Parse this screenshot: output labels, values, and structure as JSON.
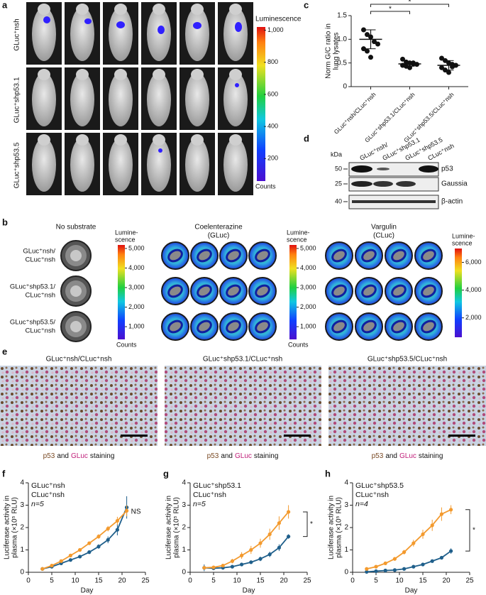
{
  "panel_labels": [
    "a",
    "b",
    "c",
    "d",
    "e",
    "f",
    "g",
    "h"
  ],
  "panel_a": {
    "rows": [
      "GLuc⁺nsh",
      "GLuc⁺shp53.1",
      "GLuc⁺shp53.5"
    ],
    "colorbar": {
      "title": "Luminescence",
      "lim": [
        60,
        1020
      ],
      "ticks": [
        {
          "value": 1000,
          "label": "1,000"
        },
        800,
        600,
        400,
        200
      ],
      "unit": "Counts"
    }
  },
  "panel_b": {
    "rows": [
      [
        "GLuc⁺nsh/",
        "CLuc⁺nsh"
      ],
      [
        "GLuc⁺shp53.1/",
        "CLuc⁺nsh"
      ],
      [
        "GLuc⁺shp53.5/",
        "CLuc⁺nsh"
      ]
    ],
    "conditions": [
      {
        "title": [
          "No substrate"
        ],
        "colorbar": {
          "title": [
            "Lumine-",
            "scence"
          ],
          "lim": [
            350,
            5180
          ],
          "ticks": [
            {
              "value": 5000,
              "label": "5,000"
            },
            {
              "value": 4000,
              "label": "4,000"
            },
            {
              "value": 3000,
              "label": "3,000"
            },
            {
              "value": 2000,
              "label": "2,000"
            },
            {
              "value": 1000,
              "label": "1,000"
            }
          ],
          "unit": "Counts"
        }
      },
      {
        "title": [
          "Coelenterazine",
          "(GLuc)"
        ],
        "colorbar": {
          "title": [
            "Lumine-",
            "scence"
          ],
          "lim": [
            350,
            5180
          ],
          "ticks": [
            {
              "value": 5000,
              "label": "5,000"
            },
            {
              "value": 4000,
              "label": "4,000"
            },
            {
              "value": 3000,
              "label": "3,000"
            },
            {
              "value": 2000,
              "label": "2,000"
            },
            {
              "value": 1000,
              "label": "1,000"
            }
          ],
          "unit": "Counts"
        }
      },
      {
        "title": [
          "Vargulin",
          "(CLuc)"
        ],
        "colorbar": {
          "title": [
            "Lumine-",
            "scence"
          ],
          "lim": [
            600,
            7000
          ],
          "ticks": [
            {
              "value": 6000,
              "label": "6,000"
            },
            {
              "value": 4000,
              "label": "4,000"
            },
            {
              "value": 2000,
              "label": "2,000"
            }
          ]
        }
      }
    ]
  },
  "panel_d": {
    "unit": "kDa",
    "markers": [
      50,
      25,
      40
    ],
    "lanes": [
      "GLuc⁺nsh/",
      "GLuc⁺shp53.1",
      "GLuc⁺shp53.5",
      "CLuc⁺nsh"
    ],
    "bands": [
      "p53",
      "Gaussia",
      "β-actin"
    ]
  },
  "panel_e": {
    "titles": [
      "GLuc⁺nsh/CLuc⁺nsh",
      "GLuc⁺shp53.1/CLuc⁺nsh",
      "GLuc⁺shp53.5/CLuc⁺nsh"
    ],
    "caption": {
      "p53": "p53",
      "and": "and",
      "gluc": "GLuc",
      "staining": "staining"
    }
  },
  "chart_data": [
    {
      "type": "strip",
      "ylabel": [
        "Norm G/C ratio in",
        "lung lysates"
      ],
      "categories": [
        "GLuc⁺nsh/CLuc⁺nsh",
        "GLuc⁺shp53.1/CLuc⁺nsh",
        "GLuc⁺shp53.5/CLuc⁺nsh"
      ],
      "values": [
        [
          1.2,
          1.1,
          1.05,
          0.95,
          0.9,
          0.8,
          0.75,
          0.62
        ],
        [
          0.58,
          0.52,
          0.5,
          0.48,
          0.47,
          0.45,
          0.43,
          0.4,
          0.5
        ],
        [
          0.6,
          0.55,
          0.5,
          0.47,
          0.45,
          0.4,
          0.35,
          0.3,
          0.42
        ]
      ],
      "means": [
        1.0,
        0.48,
        0.45
      ],
      "errors": [
        0.2,
        0.05,
        0.1
      ],
      "color": "#111111",
      "ylim": [
        0,
        1.5
      ],
      "yticks": [
        0,
        0.5,
        {
          "value": 1,
          "label": "1.0"
        },
        1.5
      ],
      "significance": [
        "*",
        "*"
      ]
    },
    {
      "type": "line",
      "xlabel": "Day",
      "ylabel": [
        "Luciferase activity in",
        "plasma (×10⁵ RLU)"
      ],
      "x": [
        3,
        5,
        7,
        9,
        11,
        13,
        15,
        17,
        19,
        21
      ],
      "series": [
        {
          "name": "GLuc⁺nsh",
          "color": "#1f5f8b",
          "values": [
            0.15,
            0.25,
            0.4,
            0.55,
            0.7,
            0.9,
            1.15,
            1.45,
            1.9,
            2.9
          ],
          "errors": [
            0.02,
            0.03,
            0.04,
            0.05,
            0.06,
            0.08,
            0.1,
            0.15,
            0.25,
            0.5
          ]
        },
        {
          "name": "CLuc⁺nsh",
          "color": "#f39a2e",
          "values": [
            0.15,
            0.3,
            0.5,
            0.75,
            1.0,
            1.3,
            1.6,
            1.95,
            2.3,
            2.75
          ],
          "errors": [
            0.02,
            0.03,
            0.04,
            0.05,
            0.06,
            0.08,
            0.1,
            0.12,
            0.18,
            0.25
          ]
        }
      ],
      "xlim": [
        0,
        25
      ],
      "xticks": [
        0,
        5,
        10,
        15,
        20,
        25
      ],
      "ylim": [
        0,
        4
      ],
      "yticks": [
        0,
        1,
        2,
        3,
        4
      ],
      "annotation": "n=5",
      "significance": "NS",
      "bracket": false
    },
    {
      "type": "line",
      "xlabel": "Day",
      "ylabel": [
        "Luciferase activity in",
        "plasma (×10⁵ RLU)"
      ],
      "x": [
        3,
        5,
        7,
        9,
        11,
        13,
        15,
        17,
        19,
        21
      ],
      "series": [
        {
          "name": "GLuc⁺shp53.1",
          "color": "#1f5f8b",
          "values": [
            0.2,
            0.18,
            0.2,
            0.25,
            0.35,
            0.45,
            0.6,
            0.8,
            1.1,
            1.6
          ],
          "errors": [
            0.15,
            0.08,
            0.05,
            0.05,
            0.06,
            0.08,
            0.1,
            0.12,
            0.15,
            0.1
          ]
        },
        {
          "name": "CLuc⁺nsh",
          "color": "#f39a2e",
          "values": [
            0.2,
            0.22,
            0.3,
            0.5,
            0.75,
            1.0,
            1.3,
            1.7,
            2.2,
            2.7
          ],
          "errors": [
            0.05,
            0.05,
            0.08,
            0.1,
            0.15,
            0.18,
            0.2,
            0.25,
            0.3,
            0.3
          ]
        }
      ],
      "xlim": [
        0,
        25
      ],
      "xticks": [
        0,
        5,
        10,
        15,
        20,
        25
      ],
      "ylim": [
        0,
        4
      ],
      "yticks": [
        0,
        1,
        2,
        3,
        4
      ],
      "annotation": "n=5",
      "significance": "*",
      "bracket": true
    },
    {
      "type": "line",
      "xlabel": "Day",
      "ylabel": [
        "Luciferase activity in",
        "plasma (×10⁵ RLU)"
      ],
      "x": [
        3,
        5,
        7,
        9,
        11,
        13,
        15,
        17,
        19,
        21
      ],
      "series": [
        {
          "name": "GLuc⁺shp53.5",
          "color": "#1f5f8b",
          "values": [
            0.02,
            0.05,
            0.08,
            0.1,
            0.15,
            0.25,
            0.35,
            0.5,
            0.65,
            0.95
          ],
          "errors": [
            0.01,
            0.01,
            0.02,
            0.02,
            0.03,
            0.04,
            0.05,
            0.06,
            0.08,
            0.12
          ]
        },
        {
          "name": "CLuc⁺nsh",
          "color": "#f39a2e",
          "values": [
            0.15,
            0.25,
            0.4,
            0.6,
            0.9,
            1.3,
            1.7,
            2.1,
            2.6,
            2.8
          ],
          "errors": [
            0.03,
            0.04,
            0.06,
            0.08,
            0.1,
            0.15,
            0.2,
            0.25,
            0.3,
            0.2
          ]
        }
      ],
      "xlim": [
        0,
        25
      ],
      "xticks": [
        0,
        5,
        10,
        15,
        20,
        25
      ],
      "ylim": [
        0,
        4
      ],
      "yticks": [
        0,
        1,
        2,
        3,
        4
      ],
      "annotation": "n=4",
      "significance": "*",
      "bracket": true
    }
  ]
}
